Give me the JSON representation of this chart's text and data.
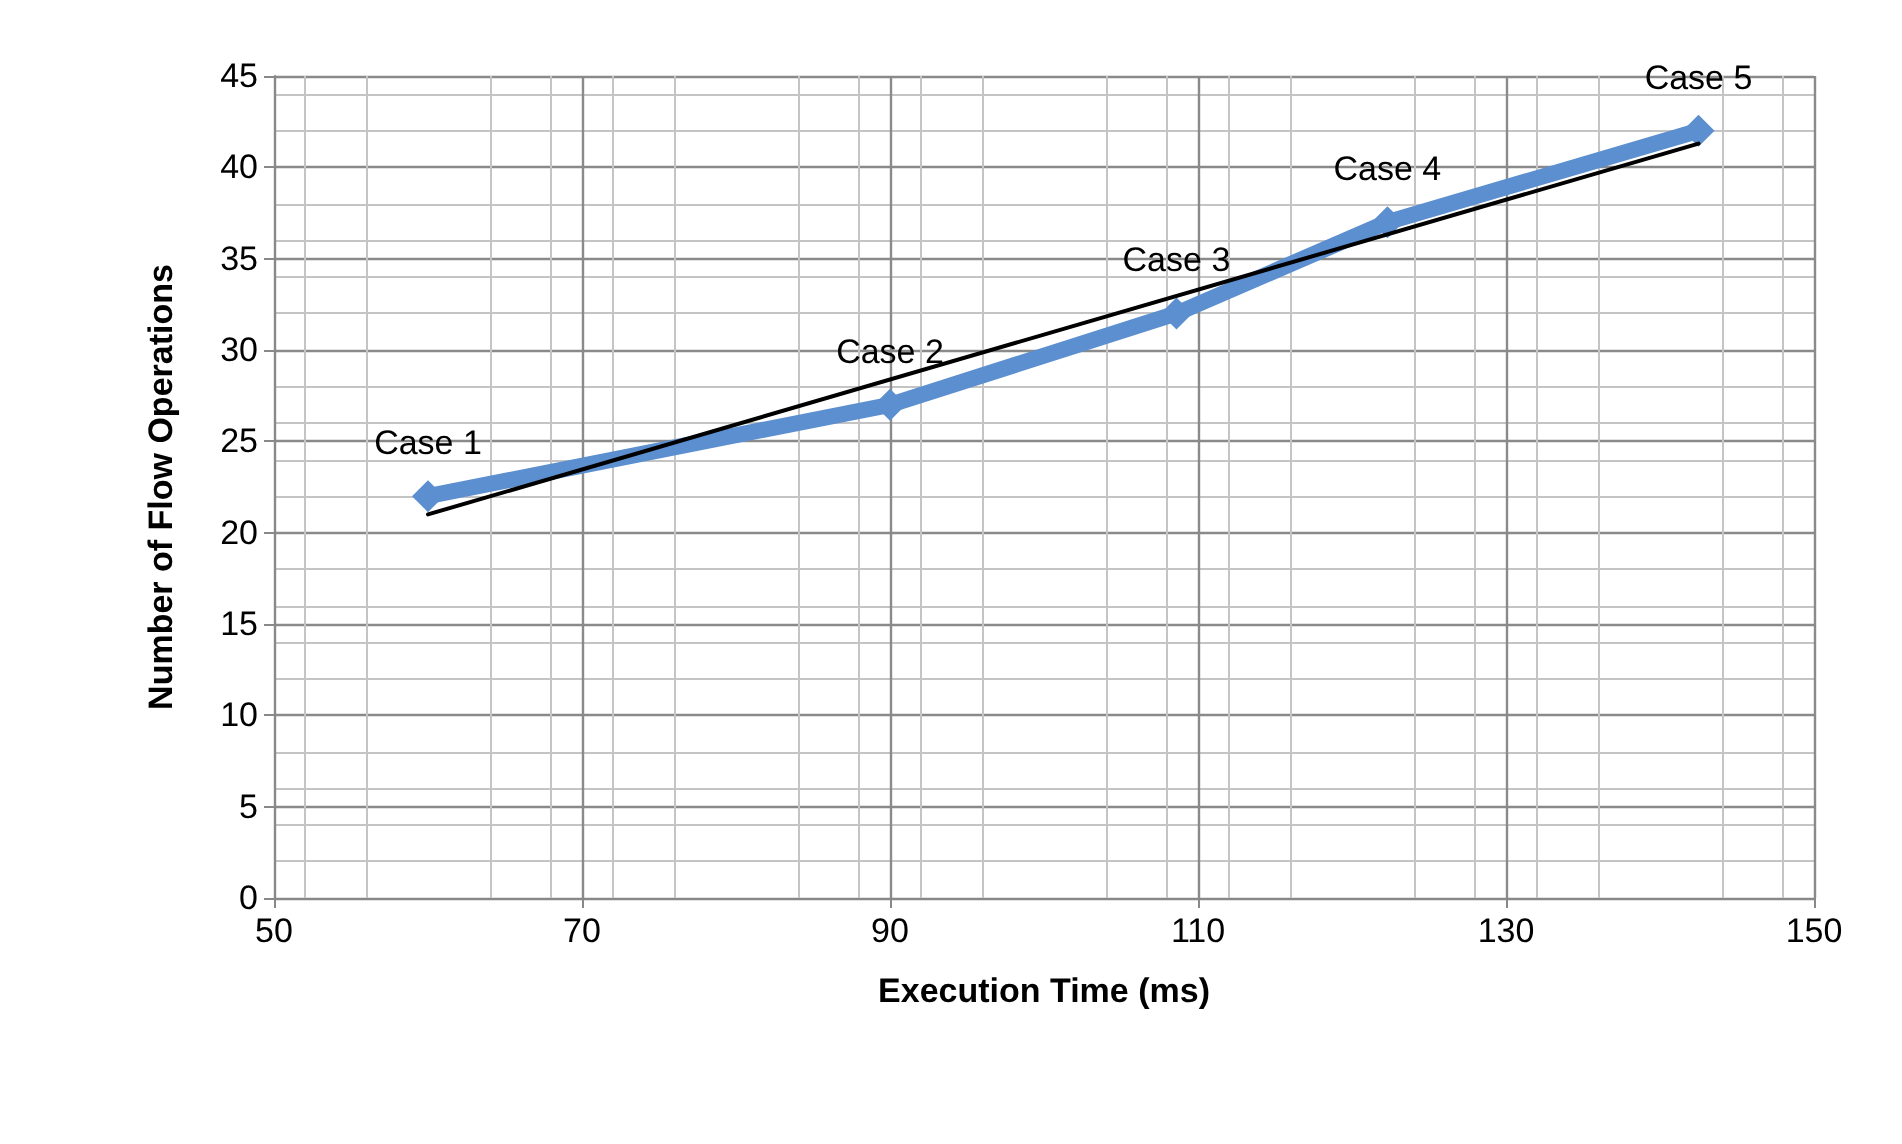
{
  "chart_data": {
    "type": "line",
    "xlabel": "Execution Time (ms)",
    "ylabel": "Number of Flow Operations",
    "xlim": [
      50,
      150
    ],
    "xticks": [
      50,
      70,
      90,
      110,
      130,
      150
    ],
    "ylim": [
      0,
      45
    ],
    "yticks": [
      0,
      5,
      10,
      15,
      20,
      25,
      30,
      35,
      40,
      45
    ],
    "grid": true,
    "marker": "diamond",
    "series": [
      {
        "color": "#5b8fcf",
        "x": [
          60,
          90,
          108.6,
          122.3,
          142.5
        ],
        "values": [
          22,
          27,
          32,
          37,
          42
        ],
        "value_labels": [
          "Case 1",
          "Case 2",
          "Case 3",
          "Case 4",
          "Case 5"
        ]
      },
      {
        "type": "line",
        "color": "#000000",
        "marker": "none",
        "x": [
          60,
          142.5
        ],
        "values": [
          21,
          41.3
        ]
      }
    ]
  }
}
